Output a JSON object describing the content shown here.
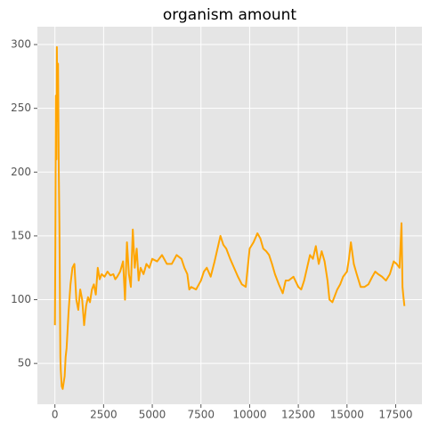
{
  "chart_data": {
    "type": "line",
    "title": "organism amount",
    "x": [
      0,
      20,
      50,
      80,
      100,
      130,
      160,
      200,
      230,
      250,
      280,
      300,
      350,
      400,
      450,
      500,
      550,
      600,
      700,
      800,
      900,
      1000,
      1100,
      1200,
      1300,
      1400,
      1500,
      1600,
      1700,
      1800,
      1900,
      2000,
      2100,
      2200,
      2300,
      2400,
      2550,
      2700,
      2850,
      3000,
      3100,
      3200,
      3350,
      3500,
      3600,
      3700,
      3800,
      3900,
      4000,
      4100,
      4200,
      4300,
      4400,
      4550,
      4700,
      4850,
      5000,
      5250,
      5500,
      5750,
      6000,
      6250,
      6500,
      6650,
      6800,
      6900,
      7000,
      7250,
      7500,
      7650,
      7800,
      8000,
      8200,
      8350,
      8500,
      8650,
      8800,
      9000,
      9200,
      9400,
      9600,
      9800,
      10000,
      10200,
      10400,
      10550,
      10700,
      10850,
      11000,
      11150,
      11300,
      11500,
      11700,
      11850,
      12000,
      12250,
      12500,
      12650,
      12800,
      12950,
      13100,
      13250,
      13400,
      13550,
      13700,
      13850,
      14000,
      14100,
      14250,
      14500,
      14650,
      14800,
      15000,
      15100,
      15200,
      15350,
      15500,
      15700,
      15900,
      16100,
      16300,
      16450,
      16600,
      16800,
      17000,
      17200,
      17400,
      17550,
      17700,
      17800,
      17850,
      17900,
      17950
    ],
    "values": [
      80,
      135,
      260,
      210,
      298,
      240,
      285,
      200,
      160,
      120,
      55,
      45,
      32,
      30,
      35,
      40,
      55,
      62,
      90,
      112,
      125,
      128,
      100,
      92,
      108,
      100,
      80,
      95,
      102,
      98,
      108,
      112,
      104,
      125,
      116,
      120,
      118,
      122,
      119,
      120,
      116,
      118,
      122,
      130,
      100,
      145,
      120,
      110,
      155,
      125,
      140,
      115,
      125,
      120,
      128,
      125,
      132,
      130,
      135,
      128,
      128,
      135,
      132,
      125,
      120,
      108,
      110,
      108,
      115,
      122,
      125,
      118,
      130,
      140,
      150,
      143,
      140,
      132,
      125,
      118,
      112,
      110,
      140,
      145,
      152,
      148,
      140,
      138,
      135,
      128,
      120,
      112,
      105,
      115,
      115,
      118,
      110,
      108,
      115,
      125,
      135,
      132,
      142,
      128,
      138,
      130,
      115,
      100,
      98,
      108,
      112,
      118,
      122,
      132,
      145,
      128,
      120,
      110,
      110,
      112,
      118,
      122,
      120,
      118,
      115,
      120,
      130,
      128,
      125,
      160,
      110,
      102,
      95
    ],
    "color": "#ffa500",
    "xlim": [
      -900,
      18850
    ],
    "ylim": [
      18,
      314
    ],
    "xticks": [
      0,
      2500,
      5000,
      7500,
      10000,
      12500,
      15000,
      17500
    ],
    "yticks": [
      50,
      100,
      150,
      200,
      250,
      300
    ],
    "grid": true
  }
}
